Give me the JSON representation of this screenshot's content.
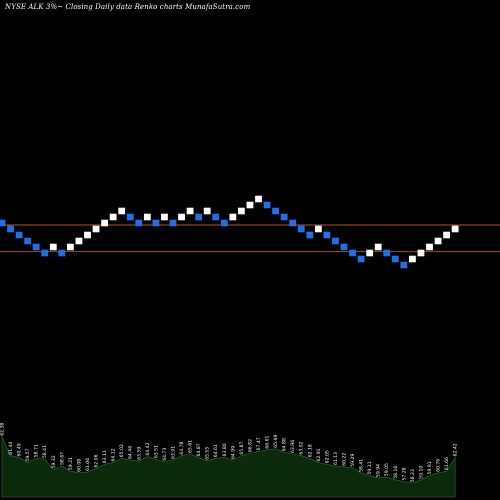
{
  "title": "NYSE ALK 3%~  Closing Daily data Renko  charts MunafaSutra.com",
  "colors": {
    "background": "#000000",
    "up_brick": "#ffffff",
    "down_brick": "#1e6fe8",
    "reference_line": "#b4581e",
    "volume_fill": "#0b2a0b",
    "volume_outline": "#2f6f2f"
  },
  "chart_data": {
    "type": "renko",
    "series": [
      {
        "values": [
          64.1,
          63.2,
          62.3,
          61.4,
          60.5,
          59.6,
          60.5,
          59.6,
          60.5,
          61.4,
          62.3,
          63.2,
          64.1,
          65.0,
          65.9,
          65.0,
          64.1,
          65.0,
          64.1,
          65.0,
          64.1,
          65.0,
          65.9,
          65.0,
          65.9,
          65.0,
          64.1,
          65.0,
          65.9,
          66.8,
          67.7,
          66.8,
          65.9,
          65.0,
          64.1,
          63.2,
          62.3,
          63.2,
          62.3,
          61.4,
          60.5,
          59.6,
          58.7,
          59.6,
          60.5,
          59.6,
          58.7,
          57.8,
          58.7,
          59.6,
          60.5,
          61.4,
          62.3,
          63.2
        ],
        "directions": [
          "down",
          "down",
          "down",
          "down",
          "down",
          "down",
          "up",
          "down",
          "up",
          "up",
          "up",
          "up",
          "up",
          "up",
          "up",
          "down",
          "down",
          "up",
          "down",
          "up",
          "down",
          "up",
          "up",
          "down",
          "up",
          "down",
          "down",
          "up",
          "up",
          "up",
          "up",
          "down",
          "down",
          "down",
          "down",
          "down",
          "down",
          "up",
          "down",
          "down",
          "down",
          "down",
          "down",
          "up",
          "up",
          "down",
          "down",
          "down",
          "up",
          "up",
          "up",
          "up",
          "up",
          "up"
        ]
      }
    ],
    "reference_lines": [
      63.8,
      59.8
    ],
    "volume": {
      "values": [
        70,
        48,
        46,
        40,
        45,
        44,
        32,
        36,
        30,
        28,
        29,
        33,
        38,
        40,
        45,
        43,
        42,
        47,
        44,
        41,
        43,
        48,
        50,
        46,
        42,
        45,
        46,
        43,
        48,
        51,
        53,
        55,
        56,
        52,
        50,
        48,
        45,
        40,
        38,
        36,
        35,
        34,
        28,
        25,
        22,
        23,
        20,
        18,
        16,
        20,
        25,
        28,
        30,
        46
      ],
      "labels": [
        "62.38",
        "61.44",
        "60.49",
        "59.57",
        "58.71",
        "58.41",
        "59.32",
        "58.67",
        "59.21",
        "60.08",
        "61.04",
        "62.06",
        "63.11",
        "64.12",
        "65.02",
        "64.46",
        "63.59",
        "64.42",
        "63.51",
        "64.73",
        "63.91",
        "64.78",
        "65.61",
        "64.87",
        "65.55",
        "64.61",
        "63.80",
        "64.99",
        "65.87",
        "66.82",
        "67.47",
        "66.61",
        "65.69",
        "64.88",
        "63.96",
        "63.02",
        "62.18",
        "62.91",
        "62.05",
        "61.13",
        "60.22",
        "59.29",
        "58.41",
        "59.11",
        "59.94",
        "59.05",
        "58.16",
        "57.28",
        "58.23",
        "59.10",
        "59.91",
        "60.76",
        "61.66",
        "62.42"
      ]
    }
  }
}
